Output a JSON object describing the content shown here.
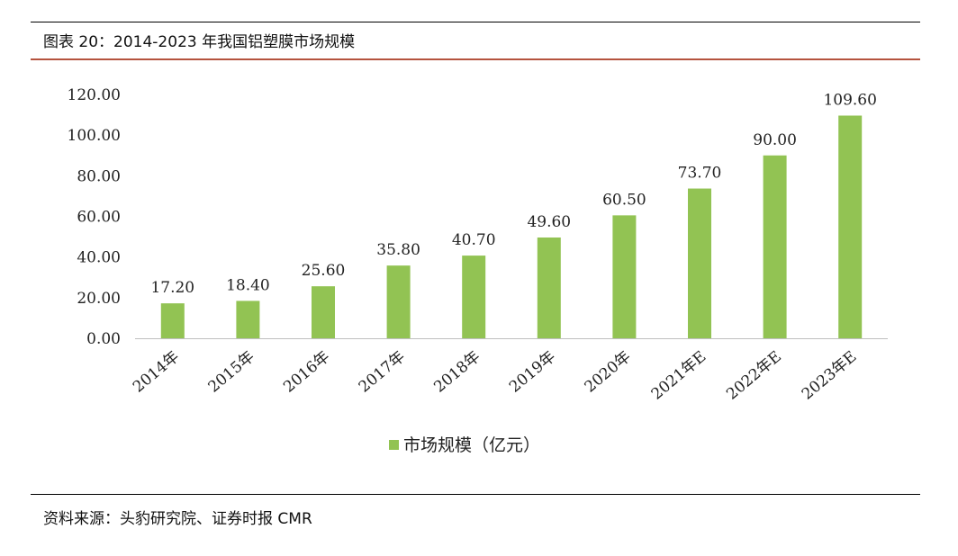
{
  "header": {
    "title": "图表 20：2014-2023 年我国铝塑膜市场规模"
  },
  "footer": {
    "source": "资料来源：头豹研究院、证券时报 CMR"
  },
  "chart_data": {
    "type": "bar",
    "title": "",
    "xlabel": "",
    "ylabel": "",
    "categories": [
      "2014年",
      "2015年",
      "2016年",
      "2017年",
      "2018年",
      "2019年",
      "2020年",
      "2021年E",
      "2022年E",
      "2023年E"
    ],
    "series": [
      {
        "name": "市场规模（亿元）",
        "values": [
          17.2,
          18.4,
          25.6,
          35.8,
          40.7,
          49.6,
          60.5,
          73.7,
          90.0,
          109.6
        ]
      }
    ],
    "data_labels": [
      "17.20",
      "18.40",
      "25.60",
      "35.80",
      "40.70",
      "49.60",
      "60.50",
      "73.70",
      "90.00",
      "109.60"
    ],
    "yticks": [
      "0.00",
      "20.00",
      "40.00",
      "60.00",
      "80.00",
      "100.00",
      "120.00"
    ],
    "ylim": [
      0,
      120
    ],
    "grid": false,
    "legend_position": "bottom",
    "bar_color": "#92c353"
  }
}
